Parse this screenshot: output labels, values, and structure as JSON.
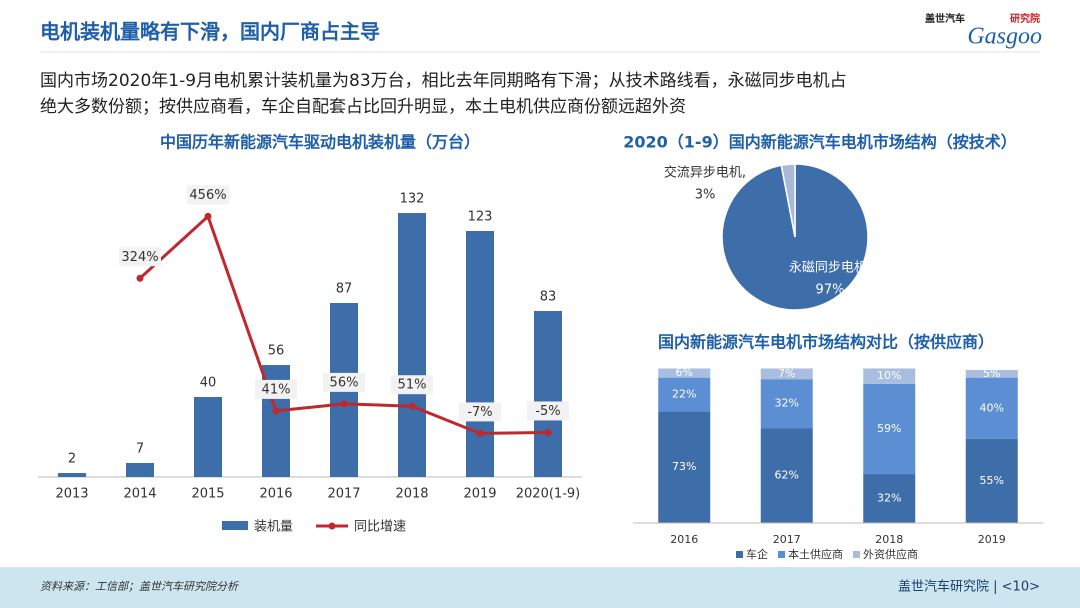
{
  "header": {
    "title": "电机装机量略有下滑，国内厂商占主导",
    "logo": {
      "cn": "盖世汽车",
      "tag": "研究院",
      "en": "Gasgoo"
    },
    "subtitle": [
      "国内市场2020年1-9月电机累计装机量为83万台，相比去年同期略有下滑；从技术路线看，永磁同步电机占",
      "绝大多数份额；按供应商看，车企自配套占比回升明显，本土电机供应商份额远超外资"
    ]
  },
  "footer": {
    "source": "资料来源：工信部；盖世汽车研究院分析",
    "brand": "盖世汽车研究院 | <10>"
  },
  "chart_data": [
    {
      "type": "bar",
      "title": "中国历年新能源汽车驱动电机装机量（万台）",
      "categories": [
        "2013",
        "2014",
        "2015",
        "2016",
        "2017",
        "2018",
        "2019",
        "2020(1-9)"
      ],
      "ylim": [
        0,
        150
      ],
      "y2lim": [
        -100,
        540
      ],
      "legend": "bottom",
      "series": [
        {
          "name": "装机量",
          "type": "bar",
          "color": "#3e6ea9",
          "values": [
            2,
            7,
            40,
            56,
            87,
            132,
            123,
            83
          ]
        },
        {
          "name": "同比增速",
          "type": "line",
          "axis": "y2",
          "color": "#c0282e",
          "values": [
            null,
            324,
            456,
            41,
            56,
            51,
            -7,
            -5
          ],
          "value_labels": [
            null,
            "324%",
            "456%",
            "41%",
            "56%",
            "51%",
            "-7%",
            "-5%"
          ]
        }
      ]
    },
    {
      "type": "pie",
      "title": "2020（1-9）国内新能源汽车电机市场结构（按技术）",
      "categories": [
        "永磁同步电机,",
        "交流异步电机,"
      ],
      "values": [
        97,
        3
      ],
      "value_labels": [
        "97%",
        "3%"
      ],
      "colors": [
        "#3e6ea9",
        "#a9b9d6"
      ]
    },
    {
      "type": "stacked_bar",
      "title": "国内新能源汽车电机市场结构对比（按供应商）",
      "categories": [
        "2016",
        "2017",
        "2018",
        "2019"
      ],
      "ylim": [
        0,
        100
      ],
      "legend": "bottom",
      "series": [
        {
          "name": "车企",
          "color": "#3e6ea9",
          "values": [
            73,
            62,
            32,
            55
          ],
          "value_labels": [
            "73%",
            "62%",
            "32%",
            "55%"
          ]
        },
        {
          "name": "本土供应商",
          "color": "#5b8ed3",
          "values": [
            22,
            32,
            59,
            40
          ],
          "value_labels": [
            "22%",
            "32%",
            "59%",
            "40%"
          ]
        },
        {
          "name": "外资供应商",
          "color": "#a9bddf",
          "values": [
            6,
            7,
            10,
            5
          ],
          "value_labels": [
            "6%",
            "7%",
            "10%",
            "5%"
          ]
        }
      ]
    }
  ]
}
